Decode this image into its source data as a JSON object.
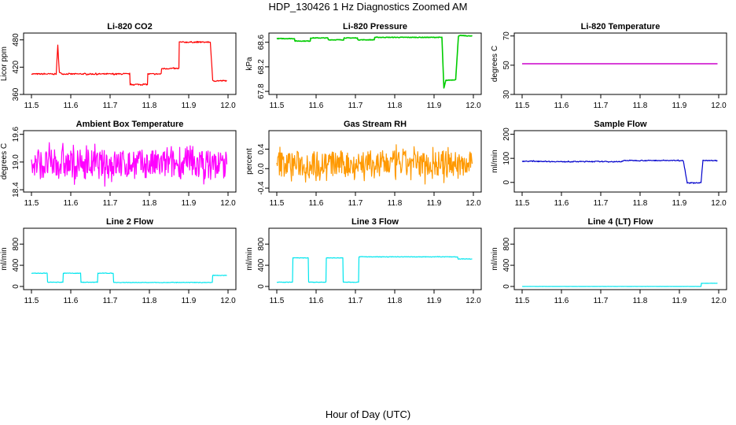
{
  "page": {
    "title": "HDP_130426  1 Hz Diagnostics Zoomed AM",
    "xlabel": "Hour of Day (UTC)"
  },
  "chart_data": [
    {
      "type": "line",
      "title": "Li-820 CO2",
      "ylabel": "Licor ppm",
      "color": "#ff0000",
      "xlim": [
        11.48,
        12.02
      ],
      "ylim": [
        360,
        495
      ],
      "xticks": [
        "11.5",
        "11.6",
        "11.7",
        "11.8",
        "11.9",
        "12.0"
      ],
      "yticks": [
        360,
        420,
        480
      ],
      "noise": 1.5,
      "series": [
        {
          "x": [
            11.5,
            11.563,
            11.567,
            11.571,
            11.58,
            11.75,
            11.751,
            11.795,
            11.796,
            11.83,
            11.831,
            11.875,
            11.876,
            11.955,
            11.961,
            11.997
          ],
          "y": [
            405,
            405,
            468,
            408,
            405,
            405,
            382,
            382,
            405,
            405,
            417,
            417,
            475,
            475,
            390,
            390
          ]
        }
      ]
    },
    {
      "type": "line",
      "title": "Li-820 Pressure",
      "ylabel": "kPa",
      "color": "#00cc00",
      "xlim": [
        11.48,
        12.02
      ],
      "ylim": [
        67.75,
        68.75
      ],
      "xticks": [
        "11.5",
        "11.6",
        "11.7",
        "11.8",
        "11.9",
        "12.0"
      ],
      "yticks": [
        67.8,
        68.2,
        68.6
      ],
      "noise": 0.005,
      "series": [
        {
          "x": [
            11.5,
            11.545,
            11.546,
            11.585,
            11.586,
            11.63,
            11.631,
            11.67,
            11.671,
            11.705,
            11.706,
            11.748,
            11.749,
            11.92,
            11.925,
            11.93,
            11.955,
            11.962,
            11.968,
            11.997
          ],
          "y": [
            68.66,
            68.66,
            68.62,
            68.62,
            68.67,
            68.67,
            68.64,
            68.64,
            68.67,
            68.67,
            68.64,
            68.64,
            68.68,
            68.68,
            67.85,
            67.98,
            67.99,
            68.7,
            68.71,
            68.7
          ]
        }
      ]
    },
    {
      "type": "line",
      "title": "Li-820 Temperature",
      "ylabel": "degrees C",
      "color": "#cc00cc",
      "xlim": [
        11.48,
        12.02
      ],
      "ylim": [
        30,
        72
      ],
      "xticks": [
        "11.5",
        "11.6",
        "11.7",
        "11.8",
        "11.9",
        "12.0"
      ],
      "yticks": [
        30,
        50,
        70
      ],
      "noise": 0,
      "series": [
        {
          "x": [
            11.5,
            11.997
          ],
          "y": [
            51,
            51
          ]
        }
      ]
    },
    {
      "type": "line",
      "title": "Ambient Box Temperature",
      "ylabel": "degrees C",
      "color": "#ff00ff",
      "xlim": [
        11.48,
        12.02
      ],
      "ylim": [
        18.35,
        19.68
      ],
      "xticks": [
        "11.5",
        "11.6",
        "11.7",
        "11.8",
        "11.9",
        "12.0"
      ],
      "yticks": [
        18.4,
        19.0,
        19.6
      ],
      "noise": 0.35,
      "series": [
        {
          "x": [
            11.5,
            11.997
          ],
          "y": [
            18.95,
            18.95
          ]
        }
      ]
    },
    {
      "type": "line",
      "title": "Gas Stream RH",
      "ylabel": "percent",
      "color": "#ff9900",
      "xlim": [
        11.48,
        12.02
      ],
      "ylim": [
        -0.48,
        0.78
      ],
      "xticks": [
        "11.5",
        "11.6",
        "11.7",
        "11.8",
        "11.9",
        "12.0"
      ],
      "yticks": [
        -0.4,
        0.0,
        0.4
      ],
      "noise": 0.3,
      "series": [
        {
          "x": [
            11.5,
            11.997
          ],
          "y": [
            0.1,
            0.1
          ]
        }
      ]
    },
    {
      "type": "line",
      "title": "Sample Flow",
      "ylabel": "ml/min",
      "color": "#0000cc",
      "xlim": [
        11.48,
        12.02
      ],
      "ylim": [
        -40,
        215
      ],
      "xticks": [
        "11.5",
        "11.6",
        "11.7",
        "11.8",
        "11.9",
        "12.0"
      ],
      "yticks": [
        0,
        100,
        200
      ],
      "noise": 2,
      "series": [
        {
          "x": [
            11.5,
            11.54,
            11.6,
            11.68,
            11.75,
            11.76,
            11.91,
            11.92,
            11.955,
            11.96,
            11.997
          ],
          "y": [
            88,
            88,
            86,
            87,
            86,
            91,
            91,
            -2,
            -2,
            92,
            90
          ]
        }
      ]
    },
    {
      "type": "line",
      "title": "Line 2 Flow",
      "ylabel": "ml/min",
      "color": "#00e5ee",
      "xlim": [
        11.48,
        12.02
      ],
      "ylim": [
        -60,
        1100
      ],
      "xticks": [
        "11.5",
        "11.6",
        "11.7",
        "11.8",
        "11.9",
        "12.0"
      ],
      "yticks": [
        0,
        400,
        800
      ],
      "noise": 5,
      "series": [
        {
          "x": [
            11.5,
            11.54,
            11.541,
            11.58,
            11.581,
            11.625,
            11.626,
            11.668,
            11.669,
            11.708,
            11.709,
            11.96,
            11.961,
            11.997
          ],
          "y": [
            250,
            250,
            80,
            80,
            250,
            250,
            80,
            80,
            250,
            250,
            75,
            75,
            210,
            210
          ]
        }
      ]
    },
    {
      "type": "line",
      "title": "Line 3 Flow",
      "ylabel": "ml/min",
      "color": "#00e5ee",
      "xlim": [
        11.48,
        12.02
      ],
      "ylim": [
        -60,
        1100
      ],
      "xticks": [
        "11.5",
        "11.6",
        "11.7",
        "11.8",
        "11.9",
        "12.0"
      ],
      "yticks": [
        0,
        400,
        800
      ],
      "noise": 5,
      "series": [
        {
          "x": [
            11.5,
            11.54,
            11.541,
            11.58,
            11.581,
            11.625,
            11.626,
            11.668,
            11.669,
            11.708,
            11.709,
            11.96,
            11.961,
            11.997
          ],
          "y": [
            80,
            80,
            540,
            540,
            80,
            80,
            540,
            540,
            80,
            80,
            560,
            560,
            520,
            520
          ]
        }
      ]
    },
    {
      "type": "line",
      "title": "Line 4 (LT) Flow",
      "ylabel": "ml/min",
      "color": "#00e5ee",
      "xlim": [
        11.48,
        12.02
      ],
      "ylim": [
        -60,
        1100
      ],
      "xticks": [
        "11.5",
        "11.6",
        "11.7",
        "11.8",
        "11.9",
        "12.0"
      ],
      "yticks": [
        0,
        400,
        800
      ],
      "noise": 1,
      "series": [
        {
          "x": [
            11.5,
            11.955,
            11.956,
            11.997
          ],
          "y": [
            0,
            0,
            60,
            60
          ]
        }
      ]
    }
  ]
}
